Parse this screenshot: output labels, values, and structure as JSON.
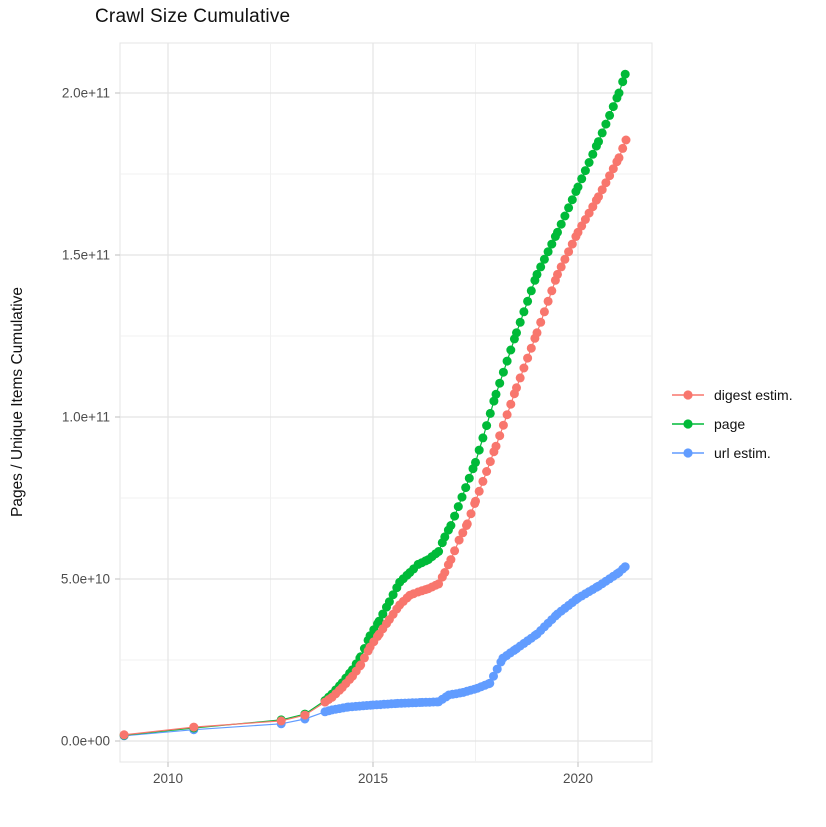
{
  "title": "Crawl Size Cumulative",
  "axes": {
    "x": {
      "title": "",
      "ticks": [
        {
          "label": "2010",
          "value": 2010
        },
        {
          "label": "2015",
          "value": 2015
        },
        {
          "label": "2020",
          "value": 2020
        }
      ],
      "minor": [
        2012.5,
        2017.5
      ]
    },
    "y": {
      "title": "Pages / Unique Items Cumulative",
      "ticks": [
        {
          "label": "0.0e+00",
          "value": 0
        },
        {
          "label": "5.0e+10",
          "value": 50000000000.0
        },
        {
          "label": "1.0e+11",
          "value": 100000000000.0
        },
        {
          "label": "1.5e+11",
          "value": 150000000000.0
        },
        {
          "label": "2.0e+11",
          "value": 200000000000.0
        }
      ],
      "minor": [
        25000000000.0,
        75000000000.0,
        125000000000.0,
        175000000000.0
      ]
    }
  },
  "legend": {
    "items": [
      {
        "label": "digest estim.",
        "color": "#F8766D"
      },
      {
        "label": "page",
        "color": "#00BA38"
      },
      {
        "label": "url estim.",
        "color": "#619CFF"
      }
    ]
  },
  "colors": {
    "grid_major": "#E4E4E4",
    "grid_minor": "#F1F1F1",
    "panel_border": "#E4E4E4",
    "tick_mark": "#C9C9C9",
    "tick_label": "#4D4D4D"
  },
  "chart_data": {
    "type": "scatter",
    "title": "Crawl Size Cumulative",
    "xlabel": "",
    "ylabel": "Pages / Unique Items Cumulative",
    "xlim": [
      2008.3,
      2021.8
    ],
    "ylim": [
      -8500000000.0,
      216000000000.0
    ],
    "grid": true,
    "legend_position": "right",
    "marker_interpolation": {
      "dense_from": 2013.8,
      "spacing_years": 0.09
    },
    "series": [
      {
        "name": "digest estim.",
        "color": "#F8766D",
        "points": [
          [
            2008.93,
            1900000000.0
          ],
          [
            2010.63,
            4300000000.0
          ],
          [
            2012.76,
            6200000000.0
          ],
          [
            2013.34,
            8000000000.0
          ],
          [
            2013.83,
            12000000000.0
          ],
          [
            2014.0,
            13500000000.0
          ],
          [
            2014.25,
            16500000000.0
          ],
          [
            2014.5,
            20000000000.0
          ],
          [
            2014.7,
            23500000000.0
          ],
          [
            2014.93,
            29000000000.0
          ],
          [
            2015.15,
            33000000000.0
          ],
          [
            2015.4,
            37500000000.0
          ],
          [
            2015.65,
            42000000000.0
          ],
          [
            2015.9,
            45000000000.0
          ],
          [
            2016.1,
            46000000000.0
          ],
          [
            2016.35,
            47000000000.0
          ],
          [
            2016.6,
            48500000000.0
          ],
          [
            2016.75,
            52000000000.0
          ],
          [
            2016.9,
            56000000000.0
          ],
          [
            2017.1,
            62000000000.0
          ],
          [
            2017.3,
            67000000000.0
          ],
          [
            2017.5,
            74000000000.0
          ],
          [
            2018.0,
            91000000000.0
          ],
          [
            2018.5,
            109000000000.0
          ],
          [
            2019.0,
            126000000000.0
          ],
          [
            2019.5,
            144000000000.0
          ],
          [
            2020.0,
            157000000000.0
          ],
          [
            2020.5,
            168000000000.0
          ],
          [
            2021.0,
            180000000000.0
          ],
          [
            2021.17,
            185500000000.0
          ]
        ]
      },
      {
        "name": "page",
        "color": "#00BA38",
        "points": [
          [
            2008.93,
            1800000000.0
          ],
          [
            2010.63,
            4000000000.0
          ],
          [
            2012.76,
            6500000000.0
          ],
          [
            2013.34,
            8300000000.0
          ],
          [
            2013.83,
            12500000000.0
          ],
          [
            2014.0,
            14500000000.0
          ],
          [
            2014.25,
            18000000000.0
          ],
          [
            2014.5,
            22000000000.0
          ],
          [
            2014.7,
            26000000000.0
          ],
          [
            2014.93,
            32500000000.0
          ],
          [
            2015.15,
            37000000000.0
          ],
          [
            2015.4,
            43000000000.0
          ],
          [
            2015.65,
            49000000000.0
          ],
          [
            2015.9,
            52000000000.0
          ],
          [
            2016.1,
            54500000000.0
          ],
          [
            2016.35,
            56000000000.0
          ],
          [
            2016.6,
            58500000000.0
          ],
          [
            2016.75,
            63000000000.0
          ],
          [
            2016.9,
            66500000000.0
          ],
          [
            2017.5,
            86000000000.0
          ],
          [
            2018.0,
            107000000000.0
          ],
          [
            2018.5,
            126000000000.0
          ],
          [
            2019.0,
            144000000000.0
          ],
          [
            2019.5,
            157000000000.0
          ],
          [
            2020.0,
            171000000000.0
          ],
          [
            2020.5,
            185000000000.0
          ],
          [
            2021.0,
            200000000000.0
          ],
          [
            2021.15,
            205800000000.0
          ]
        ]
      },
      {
        "name": "url estim.",
        "color": "#619CFF",
        "points": [
          [
            2008.93,
            1600000000.0
          ],
          [
            2010.63,
            3500000000.0
          ],
          [
            2012.76,
            5300000000.0
          ],
          [
            2013.34,
            6800000000.0
          ],
          [
            2013.83,
            9000000000.0
          ],
          [
            2014.0,
            9600000000.0
          ],
          [
            2014.4,
            10500000000.0
          ],
          [
            2015.0,
            11100000000.0
          ],
          [
            2015.6,
            11600000000.0
          ],
          [
            2016.2,
            11900000000.0
          ],
          [
            2016.6,
            12100000000.0
          ],
          [
            2016.85,
            14200000000.0
          ],
          [
            2017.2,
            15000000000.0
          ],
          [
            2017.55,
            16300000000.0
          ],
          [
            2017.85,
            17800000000.0
          ],
          [
            2018.17,
            25600000000.0
          ],
          [
            2018.5,
            28500000000.0
          ],
          [
            2019.0,
            33000000000.0
          ],
          [
            2019.5,
            39200000000.0
          ],
          [
            2020.0,
            44100000000.0
          ],
          [
            2020.5,
            47800000000.0
          ],
          [
            2021.0,
            52000000000.0
          ],
          [
            2021.15,
            53800000000.0
          ]
        ]
      }
    ]
  }
}
